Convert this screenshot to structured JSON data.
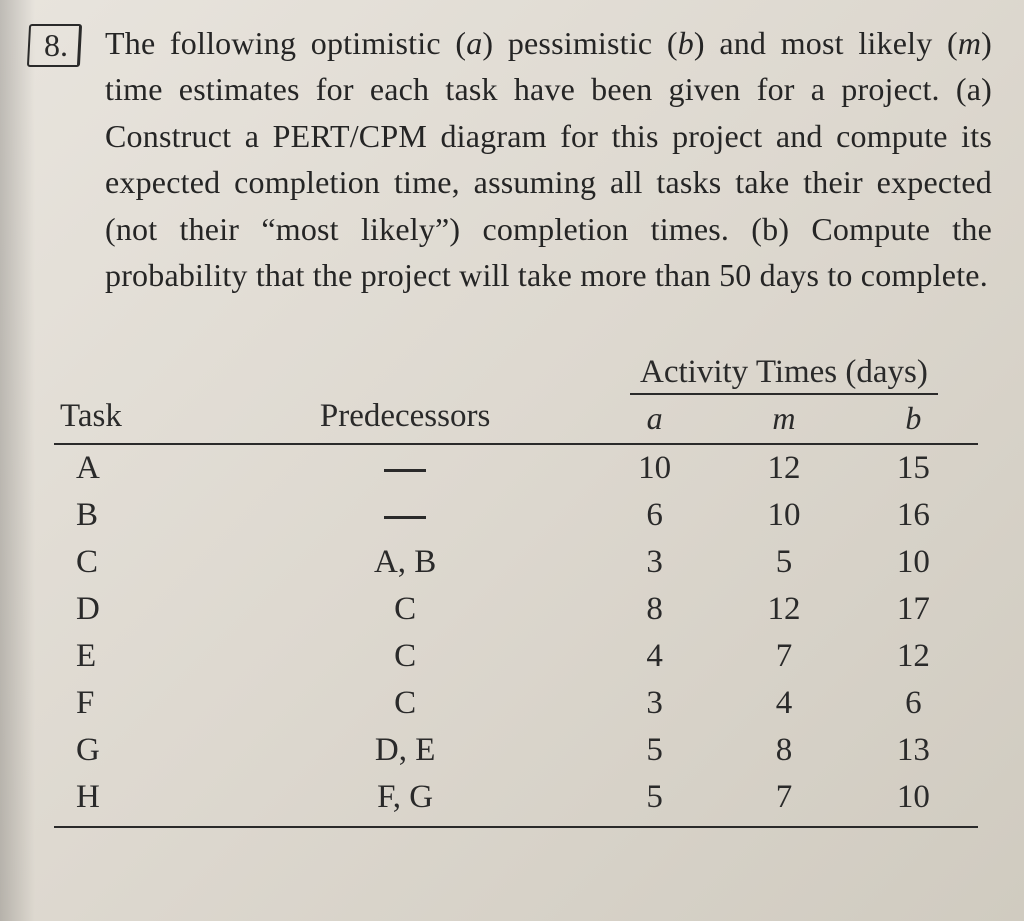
{
  "question": {
    "number": "8.",
    "text_parts": {
      "p1": "The following optimistic (",
      "a": "a",
      "p2": ") pessimistic (",
      "b": "b",
      "p3": ") and most likely (",
      "m": "m",
      "p4": ") time estimates for each task have been given for a project. (a) Construct a PERT/CPM diagram for this project and compute its expected completion time, assuming all tasks take their expected (not their “most likely”) completion times. (b) Compute the probability that the project will take more than 50 days to complete."
    }
  },
  "table": {
    "headers": {
      "task": "Task",
      "predecessors": "Predecessors",
      "activity_times": "Activity Times (days)",
      "a": "a",
      "m": "m",
      "b": "b"
    },
    "rows": [
      {
        "task": "A",
        "pred": "—",
        "a": "10",
        "m": "12",
        "b": "15"
      },
      {
        "task": "B",
        "pred": "—",
        "a": "6",
        "m": "10",
        "b": "16"
      },
      {
        "task": "C",
        "pred": "A, B",
        "a": "3",
        "m": "5",
        "b": "10"
      },
      {
        "task": "D",
        "pred": "C",
        "a": "8",
        "m": "12",
        "b": "17"
      },
      {
        "task": "E",
        "pred": "C",
        "a": "4",
        "m": "7",
        "b": "12"
      },
      {
        "task": "F",
        "pred": "C",
        "a": "3",
        "m": "4",
        "b": "6"
      },
      {
        "task": "G",
        "pred": "D, E",
        "a": "5",
        "m": "8",
        "b": "13"
      },
      {
        "task": "H",
        "pred": "F, G",
        "a": "5",
        "m": "7",
        "b": "10"
      }
    ]
  },
  "style": {
    "background_gradient_start": "#e8e4dd",
    "background_gradient_end": "#d0cbc0",
    "text_color": "#2a2a2a",
    "rule_color": "#2a2a2a",
    "body_font_size_pt": 24,
    "table_font_size_pt": 24,
    "col_widths_pct": [
      18,
      40,
      14,
      14,
      14
    ]
  }
}
